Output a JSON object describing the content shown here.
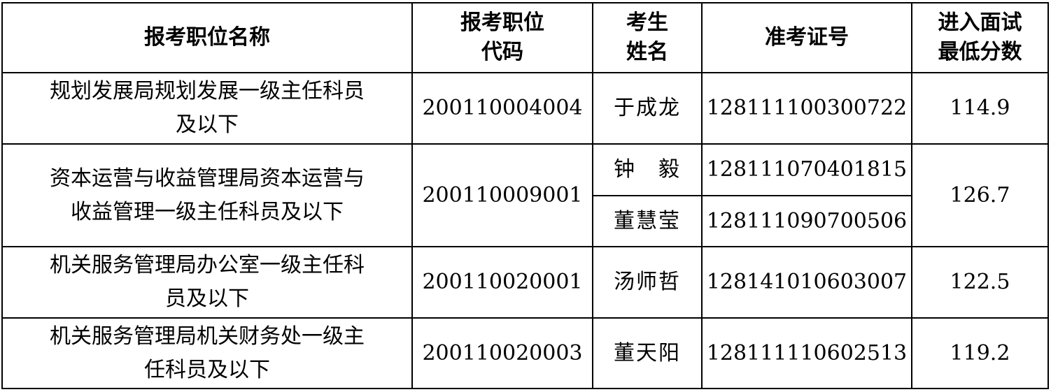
{
  "headers": {
    "position_name": [
      "报考职位名称"
    ],
    "position_code": [
      "报考职位",
      "代码"
    ],
    "candidate_name": [
      "考生",
      "姓名"
    ],
    "admission_ticket": [
      "准考证号"
    ],
    "min_score": [
      "进入面试",
      "最低分数"
    ]
  },
  "rows": [
    {
      "position_name": [
        "规划发展局规划发展一级主任科员",
        "及以下"
      ],
      "position_code": "200110004004",
      "candidates": [
        {
          "name": "于成龙",
          "ticket": "128111100300722"
        }
      ],
      "min_score": "114.9"
    },
    {
      "position_name": [
        "资本运营与收益管理局资本运营与",
        "收益管理一级主任科员及以下"
      ],
      "position_code": "200110009001",
      "candidates": [
        {
          "name": "钟　毅",
          "ticket": "128111070401815"
        },
        {
          "name": "董慧莹",
          "ticket": "128111090700506"
        }
      ],
      "min_score": "126.7"
    },
    {
      "position_name": [
        "机关服务管理局办公室一级主任科",
        "员及以下"
      ],
      "position_code": "200110020001",
      "candidates": [
        {
          "name": "汤师哲",
          "ticket": "128141010603007"
        }
      ],
      "min_score": "122.5"
    },
    {
      "position_name": [
        "机关服务管理局机关财务处一级主",
        "任科员及以下"
      ],
      "position_code": "200110020003",
      "candidates": [
        {
          "name": "董天阳",
          "ticket": "128111110602513"
        }
      ],
      "min_score": "119.2"
    }
  ]
}
